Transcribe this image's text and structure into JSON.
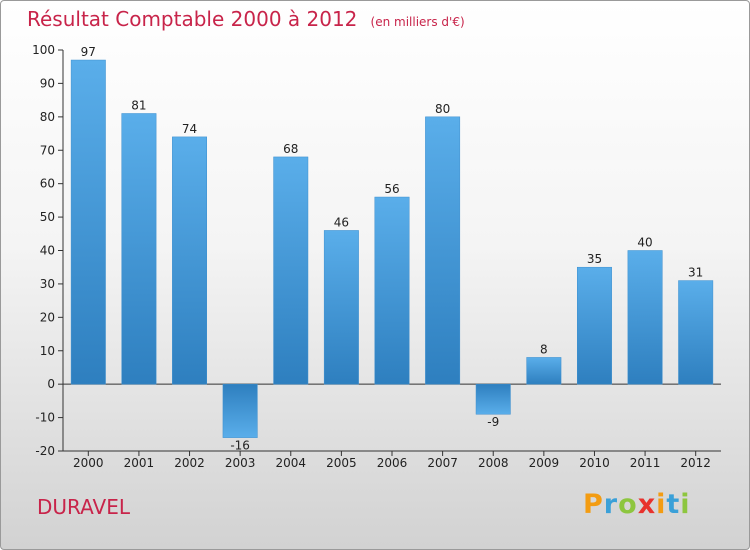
{
  "page": {
    "title": "Résultat Comptable 2000 à 2012",
    "subtitle": "(en milliers d'€)",
    "commune": "DURAVEL",
    "logo": "Proxiti",
    "colors": {
      "title": "#c8244a",
      "bar_light": "#5aaeea",
      "bar_dark": "#2e7fbf",
      "logo_letters": [
        "#f39c12",
        "#3aa0d8",
        "#8dc63f",
        "#e8322d",
        "#f39c12",
        "#3aa0d8",
        "#8dc63f"
      ]
    }
  },
  "chart_data": {
    "type": "bar",
    "title": "Résultat Comptable 2000 à 2012",
    "ylabel": "en milliers d'€",
    "xlabel": "",
    "categories": [
      "2000",
      "2001",
      "2002",
      "2003",
      "2004",
      "2005",
      "2006",
      "2007",
      "2008",
      "2009",
      "2010",
      "2011",
      "2012"
    ],
    "values": [
      97,
      81,
      74,
      -16,
      68,
      46,
      56,
      80,
      -9,
      8,
      35,
      40,
      31
    ],
    "value_labels": [
      "97",
      "81",
      "74",
      "-16",
      "68",
      "46",
      "56",
      "80",
      "-9",
      "8",
      "35",
      "40",
      "31"
    ],
    "ylim": [
      -20,
      100
    ],
    "yticks": [
      -20,
      -10,
      0,
      10,
      20,
      30,
      40,
      50,
      60,
      70,
      80,
      90,
      100
    ],
    "ytick_labels": [
      "-20",
      "-10",
      "0",
      "10",
      "20",
      "30",
      "40",
      "50",
      "60",
      "70",
      "80",
      "90",
      "100"
    ],
    "grid": false,
    "legend": "none"
  }
}
